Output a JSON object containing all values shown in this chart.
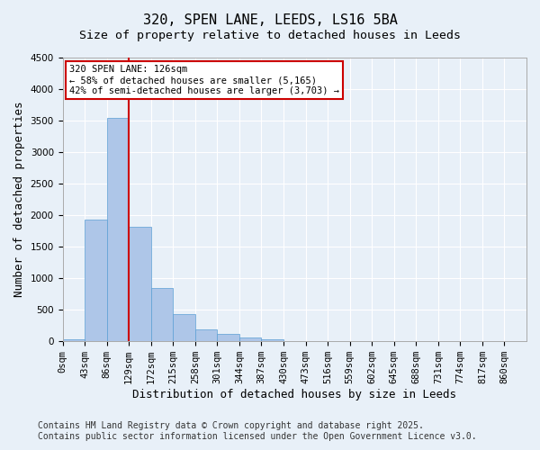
{
  "title_line1": "320, SPEN LANE, LEEDS, LS16 5BA",
  "title_line2": "Size of property relative to detached houses in Leeds",
  "xlabel": "Distribution of detached houses by size in Leeds",
  "ylabel": "Number of detached properties",
  "bar_values": [
    30,
    1930,
    3540,
    1820,
    840,
    430,
    190,
    120,
    55,
    30,
    10,
    0,
    0,
    0,
    0,
    0,
    0,
    0,
    0,
    0,
    0
  ],
  "bar_labels": [
    "0sqm",
    "43sqm",
    "86sqm",
    "129sqm",
    "172sqm",
    "215sqm",
    "258sqm",
    "301sqm",
    "344sqm",
    "387sqm",
    "430sqm",
    "473sqm",
    "516sqm",
    "559sqm",
    "602sqm",
    "645sqm",
    "688sqm",
    "731sqm",
    "774sqm",
    "817sqm",
    "860sqm"
  ],
  "bar_color": "#aec6e8",
  "bar_edge_color": "#5a9fd4",
  "bar_width": 1.0,
  "ylim": [
    0,
    4500
  ],
  "yticks": [
    0,
    500,
    1000,
    1500,
    2000,
    2500,
    3000,
    3500,
    4000,
    4500
  ],
  "vline_x": 3,
  "vline_color": "#cc0000",
  "annotation_text": "320 SPEN LANE: 126sqm\n← 58% of detached houses are smaller (5,165)\n42% of semi-detached houses are larger (3,703) →",
  "annotation_box_color": "#ffffff",
  "annotation_box_edge": "#cc0000",
  "footer_line1": "Contains HM Land Registry data © Crown copyright and database right 2025.",
  "footer_line2": "Contains public sector information licensed under the Open Government Licence v3.0.",
  "background_color": "#e8f0f8",
  "grid_color": "#ffffff",
  "title_fontsize": 11,
  "subtitle_fontsize": 9.5,
  "axis_label_fontsize": 9,
  "tick_fontsize": 7.5,
  "footer_fontsize": 7
}
